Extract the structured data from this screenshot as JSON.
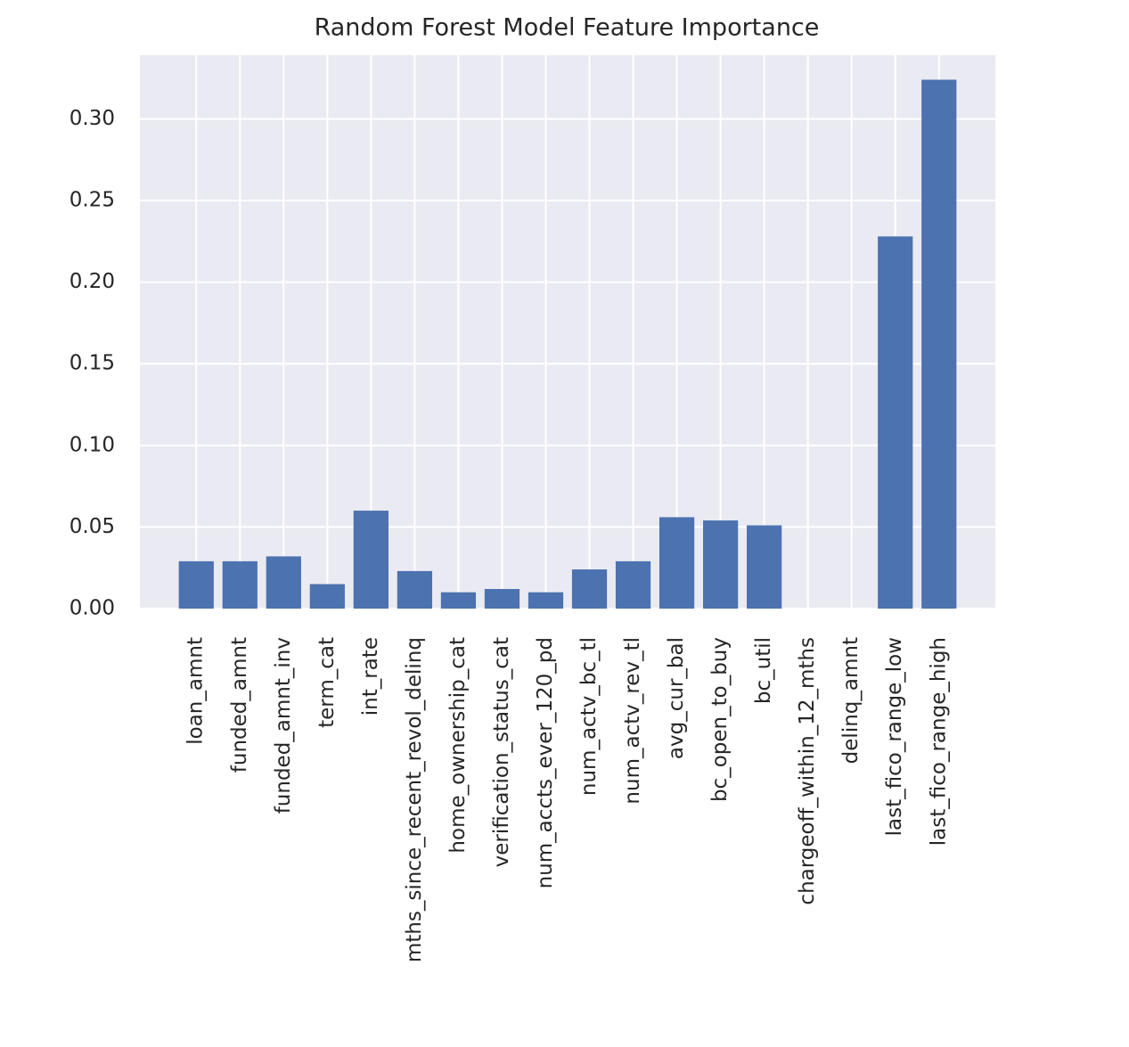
{
  "chart_data": {
    "type": "bar",
    "title": "Random Forest Model Feature Importance",
    "categories": [
      "loan_amnt",
      "funded_amnt",
      "funded_amnt_inv",
      "term_cat",
      "int_rate",
      "mths_since_recent_revol_delinq",
      "home_ownership_cat",
      "verification_status_cat",
      "num_accts_ever_120_pd",
      "num_actv_bc_tl",
      "num_actv_rev_tl",
      "avg_cur_bal",
      "bc_open_to_buy",
      "bc_util",
      "chargeoff_within_12_mths",
      "delinq_amnt",
      "last_fico_range_low",
      "last_fico_range_high"
    ],
    "values": [
      0.029,
      0.029,
      0.032,
      0.015,
      0.06,
      0.023,
      0.01,
      0.012,
      0.01,
      0.024,
      0.029,
      0.056,
      0.054,
      0.051,
      0,
      0,
      0.228,
      0.324
    ],
    "color": "#4c72b0",
    "ylim": [
      0,
      0.339
    ],
    "yticks": [
      {
        "value": 0,
        "label": "0.00"
      },
      {
        "value": 0.05,
        "label": "0.05"
      },
      {
        "value": 0.1,
        "label": "0.10"
      },
      {
        "value": 0.15,
        "label": "0.15"
      },
      {
        "value": 0.2,
        "label": "0.20"
      },
      {
        "value": 0.25,
        "label": "0.25"
      },
      {
        "value": 0.3,
        "label": "0.30"
      }
    ],
    "grid": true
  }
}
